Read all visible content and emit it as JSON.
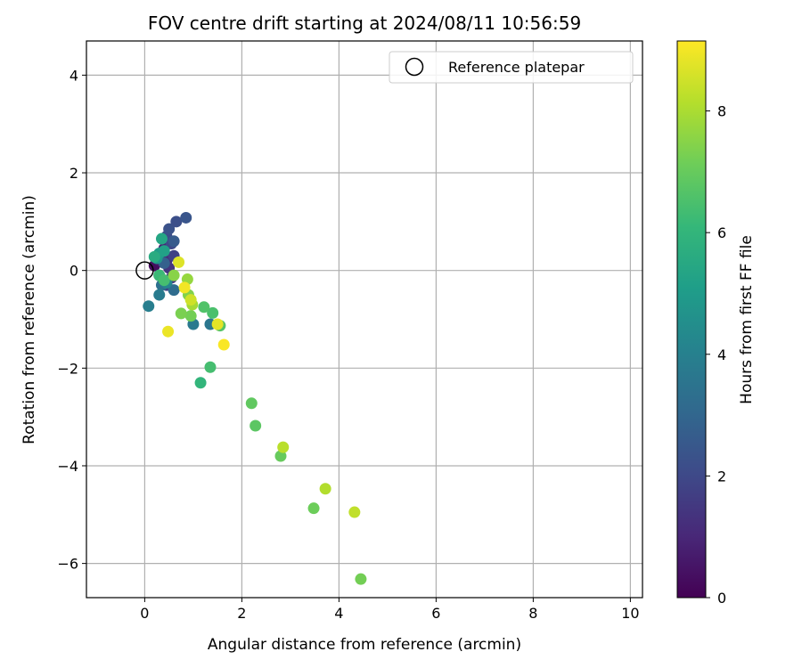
{
  "chart_data": {
    "type": "scatter",
    "title": "FOV centre drift starting at 2024/08/11 10:56:59",
    "xlabel": "Angular distance from reference (arcmin)",
    "ylabel": "Rotation from reference (arcmin)",
    "xlim": [
      -1.2,
      10.25
    ],
    "ylim": [
      -6.7,
      4.7
    ],
    "xticks": [
      0,
      2,
      4,
      6,
      8,
      10
    ],
    "yticks": [
      -6,
      -4,
      -2,
      0,
      2,
      4
    ],
    "xtick_labels": [
      "0",
      "2",
      "4",
      "6",
      "8",
      "10"
    ],
    "ytick_labels": [
      "−6",
      "−4",
      "−2",
      "0",
      "2",
      "4"
    ],
    "grid": true,
    "legend": {
      "position": "top-right",
      "entries": [
        "Reference platepar"
      ]
    },
    "reference_point": {
      "x": 0,
      "y": 0
    },
    "colormap": "viridis",
    "colorbar": {
      "label": "Hours from first FF file",
      "range": [
        0,
        9.15
      ],
      "ticks": [
        0,
        2,
        4,
        6,
        8
      ],
      "tick_labels": [
        "0",
        "2",
        "4",
        "6",
        "8"
      ]
    },
    "points": [
      {
        "x": 0.2,
        "y": 0.1,
        "c": 0.3
      },
      {
        "x": 0.3,
        "y": 0.2,
        "c": 0.5
      },
      {
        "x": 0.35,
        "y": 0.35,
        "c": 0.8
      },
      {
        "x": 0.4,
        "y": 0.45,
        "c": 1.0
      },
      {
        "x": 0.45,
        "y": 0.2,
        "c": 1.2
      },
      {
        "x": 0.5,
        "y": 0.05,
        "c": 1.4
      },
      {
        "x": 0.55,
        "y": -0.15,
        "c": 1.5
      },
      {
        "x": 0.45,
        "y": -0.3,
        "c": 1.7
      },
      {
        "x": 0.6,
        "y": 0.3,
        "c": 1.8
      },
      {
        "x": 0.55,
        "y": 0.55,
        "c": 2.0
      },
      {
        "x": 0.45,
        "y": 0.7,
        "c": 2.1
      },
      {
        "x": 0.5,
        "y": 0.85,
        "c": 2.3
      },
      {
        "x": 0.65,
        "y": 1.0,
        "c": 2.2
      },
      {
        "x": 0.85,
        "y": 1.08,
        "c": 2.4
      },
      {
        "x": 0.6,
        "y": 0.6,
        "c": 2.6
      },
      {
        "x": 0.4,
        "y": 0.15,
        "c": 2.8
      },
      {
        "x": 0.3,
        "y": -0.1,
        "c": 3.0
      },
      {
        "x": 0.6,
        "y": -0.4,
        "c": 3.2
      },
      {
        "x": 0.35,
        "y": -0.3,
        "c": 3.4
      },
      {
        "x": 0.3,
        "y": -0.5,
        "c": 3.8
      },
      {
        "x": 0.08,
        "y": -0.73,
        "c": 3.9
      },
      {
        "x": 1.0,
        "y": -1.1,
        "c": 3.7
      },
      {
        "x": 1.35,
        "y": -1.1,
        "c": 3.6
      },
      {
        "x": 0.45,
        "y": -0.25,
        "c": 4.2
      },
      {
        "x": 0.25,
        "y": 0.25,
        "c": 4.8
      },
      {
        "x": 0.3,
        "y": 0.35,
        "c": 5.0
      },
      {
        "x": 0.4,
        "y": 0.4,
        "c": 5.2
      },
      {
        "x": 0.35,
        "y": 0.65,
        "c": 5.4
      },
      {
        "x": 0.2,
        "y": 0.28,
        "c": 5.6
      },
      {
        "x": 0.3,
        "y": -0.1,
        "c": 6.2
      },
      {
        "x": 0.4,
        "y": -0.2,
        "c": 6.4
      },
      {
        "x": 1.15,
        "y": -2.3,
        "c": 6.0
      },
      {
        "x": 1.35,
        "y": -1.98,
        "c": 6.4
      },
      {
        "x": 1.4,
        "y": -0.87,
        "c": 6.5
      },
      {
        "x": 1.55,
        "y": -1.13,
        "c": 6.7
      },
      {
        "x": 1.22,
        "y": -0.75,
        "c": 6.6
      },
      {
        "x": 0.95,
        "y": -0.93,
        "c": 7.2
      },
      {
        "x": 0.75,
        "y": -0.88,
        "c": 7.3
      },
      {
        "x": 0.9,
        "y": -0.5,
        "c": 7.4
      },
      {
        "x": 0.6,
        "y": -0.1,
        "c": 7.5
      },
      {
        "x": 0.88,
        "y": -0.18,
        "c": 7.7
      },
      {
        "x": 0.98,
        "y": -0.7,
        "c": 7.9
      },
      {
        "x": 2.2,
        "y": -2.72,
        "c": 6.9
      },
      {
        "x": 2.28,
        "y": -3.18,
        "c": 6.8
      },
      {
        "x": 2.8,
        "y": -3.8,
        "c": 7.0
      },
      {
        "x": 2.85,
        "y": -3.62,
        "c": 8.2
      },
      {
        "x": 3.48,
        "y": -4.87,
        "c": 7.1
      },
      {
        "x": 3.72,
        "y": -4.47,
        "c": 8.1
      },
      {
        "x": 4.32,
        "y": -4.95,
        "c": 8.3
      },
      {
        "x": 4.45,
        "y": -6.32,
        "c": 7.2
      },
      {
        "x": 0.48,
        "y": -1.25,
        "c": 8.9
      },
      {
        "x": 0.7,
        "y": 0.17,
        "c": 8.7
      },
      {
        "x": 0.82,
        "y": -0.35,
        "c": 9.0
      },
      {
        "x": 0.95,
        "y": -0.6,
        "c": 8.5
      },
      {
        "x": 1.5,
        "y": -1.1,
        "c": 8.8
      },
      {
        "x": 1.63,
        "y": -1.52,
        "c": 9.1
      }
    ]
  }
}
